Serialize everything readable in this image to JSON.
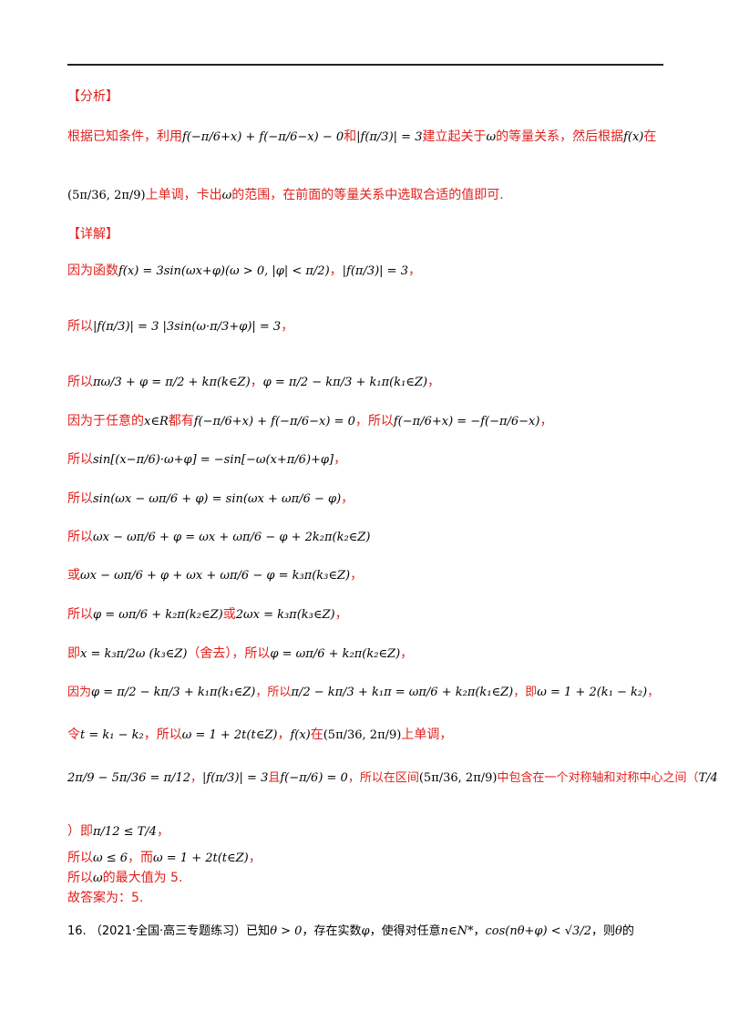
{
  "analysis": {
    "heading": "【分析】",
    "line1_a": "根据已知条件，利用",
    "cond1": "f(−π/6+x) + f(−π/6−x) − 0",
    "line1_b": "和",
    "cond2": "|f(π/3)| = 3",
    "line1_c": "建立起关于",
    "omega": "ω",
    "line1_d": "的等量关系，然后根据",
    "fx": "f(x)",
    "line1_e": "在",
    "interval": "(5π/36, 2π/9)",
    "line2_b": "上单调，卡出",
    "line2_c": "ω",
    "line2_d": "的范围，在前面的等量关系中选取合适的值即可."
  },
  "detail": {
    "heading": "【详解】",
    "l1_a": "因为函数",
    "l1_f": "f(x) = 3sin(ωx+φ)(ω > 0, |φ| < π/2)",
    "l1_b": "，",
    "l1_g": "|f(π/3)| = 3",
    "l1_c": "，",
    "l2_a": "所以",
    "l2_f": "|f(π/3)| = 3 |3sin(ω·π/3+φ)| = 3",
    "l2_b": "，",
    "l3_a": "所以",
    "l3_f1": "πω/3 + φ = π/2 + kπ(k∈Z)",
    "l3_b": "，",
    "l3_f2": "φ = π/2 − kπ/3 + k₁π(k₁∈Z)",
    "l3_c": "，",
    "l4_a": "因为于任意的",
    "l4_x": "x∈R",
    "l4_b": "都有",
    "l4_f1": "f(−π/6+x) + f(−π/6−x) = 0",
    "l4_c": "，所以",
    "l4_f2": "f(−π/6+x) = −f(−π/6−x)",
    "l4_d": "，",
    "l5_a": "所以",
    "l5_f": "sin[(x−π/6)·ω+φ] = −sin[−ω(x+π/6)+φ]",
    "l5_b": "，",
    "l6_a": "所以",
    "l6_f": "sin(ωx − ωπ/6 + φ) = sin(ωx + ωπ/6 − φ)",
    "l6_b": "，",
    "l7_a": "所以",
    "l7_f": "ωx − ωπ/6 + φ = ωx + ωπ/6 − φ + 2k₂π(k₂∈Z)",
    "l8_a": "或",
    "l8_f": "ωx − ωπ/6 + φ + ωx + ωπ/6 − φ = k₃π(k₃∈Z)",
    "l8_b": "，",
    "l9_a": "所以",
    "l9_f1": "φ = ωπ/6 + k₂π(k₂∈Z)",
    "l9_b": "或",
    "l9_f2": "2ωx = k₃π(k₃∈Z)",
    "l9_c": "，",
    "l10_a": "即",
    "l10_f1": "x = k₃π/2ω (k₃∈Z)",
    "l10_b": "（舍去），所以",
    "l10_f2": "φ = ωπ/6 + k₂π(k₂∈Z)",
    "l10_c": "，",
    "l11_a": "因为",
    "l11_f1": "φ = π/2 − kπ/3 + k₁π(k₁∈Z)",
    "l11_b": "，所以",
    "l11_f2": "π/2 − kπ/3 + k₁π = ωπ/6 + k₂π(k₁∈Z)",
    "l11_c": "，即",
    "l11_f3": "ω = 1 + 2(k₁ − k₂)",
    "l11_d": "，",
    "l12_a": "令",
    "l12_f1": "t = k₁ − k₂",
    "l12_b": "，所以",
    "l12_f2": "ω = 1 + 2t(t∈Z)",
    "l12_c": "，",
    "l12_f3": "f(x)",
    "l12_d": "在",
    "l12_f4": "(5π/36, 2π/9)",
    "l12_e": "上单调，",
    "l13_f1": "2π/9 − 5π/36 = π/12",
    "l13_a": "，",
    "l13_f2": "|f(π/3)| = 3",
    "l13_b": "且",
    "l13_f3": "f(−π/6) = 0",
    "l13_c": "，所以在区间",
    "l13_f4": "(5π/36, 2π/9)",
    "l13_d": "中包含在一个对称轴和对称中心之间（",
    "l13_f5": "T/4",
    "l14_a": "）即",
    "l14_f": "π/12 ≤ T/4",
    "l14_b": "，",
    "l15_a": "所以",
    "l15_f1": "ω ≤ 6",
    "l15_b": "，而",
    "l15_f2": "ω = 1 + 2t(t∈Z)",
    "l15_c": "，",
    "l16_a": "所以",
    "l16_w": "ω",
    "l16_b": "的最大值为 5.",
    "l17": "故答案为：5."
  },
  "q16": {
    "num": "16.",
    "src": "（2021·全国·高三专题练习）已知",
    "f1": "θ > 0",
    "a": "，存在实数",
    "f2": "φ",
    "b": "，使得对任意",
    "f3": "n∈N*",
    "c": "，",
    "f4": "cos(nθ+φ) < √3/2",
    "d": "，则",
    "f5": "θ",
    "e": "的"
  }
}
